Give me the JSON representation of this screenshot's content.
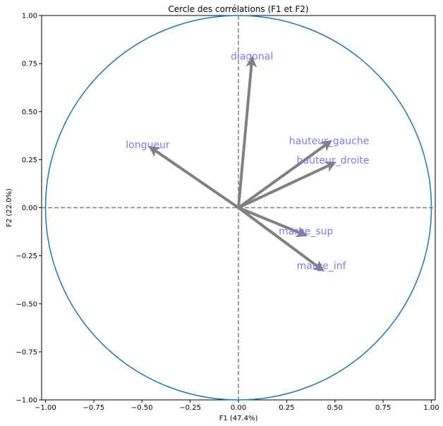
{
  "chart_data": {
    "type": "scatter",
    "subtype": "correlation-circle",
    "title": "Cercle des corrélations (F1 et F2)",
    "xlabel": "F1 (47.4%)",
    "ylabel": "F2 (22.0%)",
    "xlim": [
      -1.02,
      1.02
    ],
    "ylim": [
      -1.0,
      1.0
    ],
    "x_ticks": [
      -1.0,
      -0.75,
      -0.5,
      -0.25,
      0.0,
      0.25,
      0.5,
      0.75,
      1.0
    ],
    "y_ticks": [
      -1.0,
      -0.75,
      -0.5,
      -0.25,
      0.0,
      0.25,
      0.5,
      0.75,
      1.0
    ],
    "x_tick_labels": [
      "−1.00",
      "−0.75",
      "−0.50",
      "−0.25",
      "0.00",
      "0.25",
      "0.50",
      "0.75",
      "1.00"
    ],
    "y_tick_labels": [
      "−1.00",
      "−0.75",
      "−0.50",
      "−0.25",
      "0.00",
      "0.25",
      "0.50",
      "0.75",
      "1.00"
    ],
    "circle_radius": 1.0,
    "grid": false,
    "reference_lines": [
      0,
      0
    ],
    "colors": {
      "circle": "#1f77b4",
      "arrow": "#808080",
      "label": "#7b7bf0",
      "refline": "#808080"
    },
    "variables": [
      {
        "name": "diagonal",
        "x": 0.07,
        "y": 0.77
      },
      {
        "name": "longueur",
        "x": -0.45,
        "y": 0.31
      },
      {
        "name": "hauteur_gauche",
        "x": 0.47,
        "y": 0.34
      },
      {
        "name": "hauteur_droite",
        "x": 0.49,
        "y": 0.23
      },
      {
        "name": "marge_sup",
        "x": 0.34,
        "y": -0.14
      },
      {
        "name": "marge_inf",
        "x": 0.43,
        "y": -0.32
      }
    ],
    "label_positions": [
      {
        "name": "diagonal",
        "x": 0.07,
        "y": 0.77
      },
      {
        "name": "longueur",
        "x": -0.47,
        "y": 0.31
      },
      {
        "name": "hauteur_gauche",
        "x": 0.47,
        "y": 0.33
      },
      {
        "name": "hauteur_droite",
        "x": 0.49,
        "y": 0.23
      },
      {
        "name": "marge_sup",
        "x": 0.35,
        "y": -0.14
      },
      {
        "name": "marge_inf",
        "x": 0.43,
        "y": -0.32
      }
    ]
  }
}
